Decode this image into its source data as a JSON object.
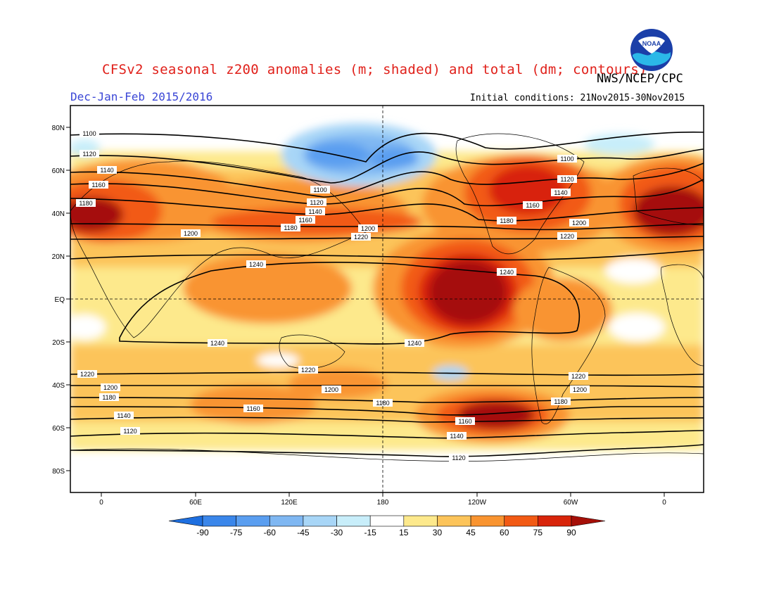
{
  "header": {
    "title": "CFSv2 seasonal z200 anomalies (m; shaded) and total (dm; contours)",
    "period": "Dec-Jan-Feb 2015/2016",
    "agency": "NWS/NCEP/CPC",
    "initial_conditions": "Initial conditions: 21Nov2015-30Nov2015",
    "logo_text": "NOAA"
  },
  "axes": {
    "lat_labels": [
      "80N",
      "60N",
      "40N",
      "20N",
      "EQ",
      "20S",
      "40S",
      "60S",
      "80S"
    ],
    "lon_labels": [
      "0",
      "60E",
      "120E",
      "180",
      "120W",
      "60W",
      "0"
    ]
  },
  "colorbar": {
    "levels": [
      "-90",
      "-75",
      "-60",
      "-45",
      "-30",
      "-15",
      "15",
      "30",
      "45",
      "60",
      "75",
      "90"
    ],
    "colors": [
      "#1e6fe0",
      "#3a86ea",
      "#5a9ef0",
      "#7fb7f2",
      "#a8d6f7",
      "#c8eefa",
      "#ffffff",
      "#fde98c",
      "#fcc45a",
      "#f99430",
      "#f25a14",
      "#d8240a",
      "#a50f08"
    ]
  },
  "contours": {
    "labels": [
      "1100",
      "1120",
      "1140",
      "1160",
      "1180",
      "1200",
      "1220",
      "1240"
    ]
  }
}
